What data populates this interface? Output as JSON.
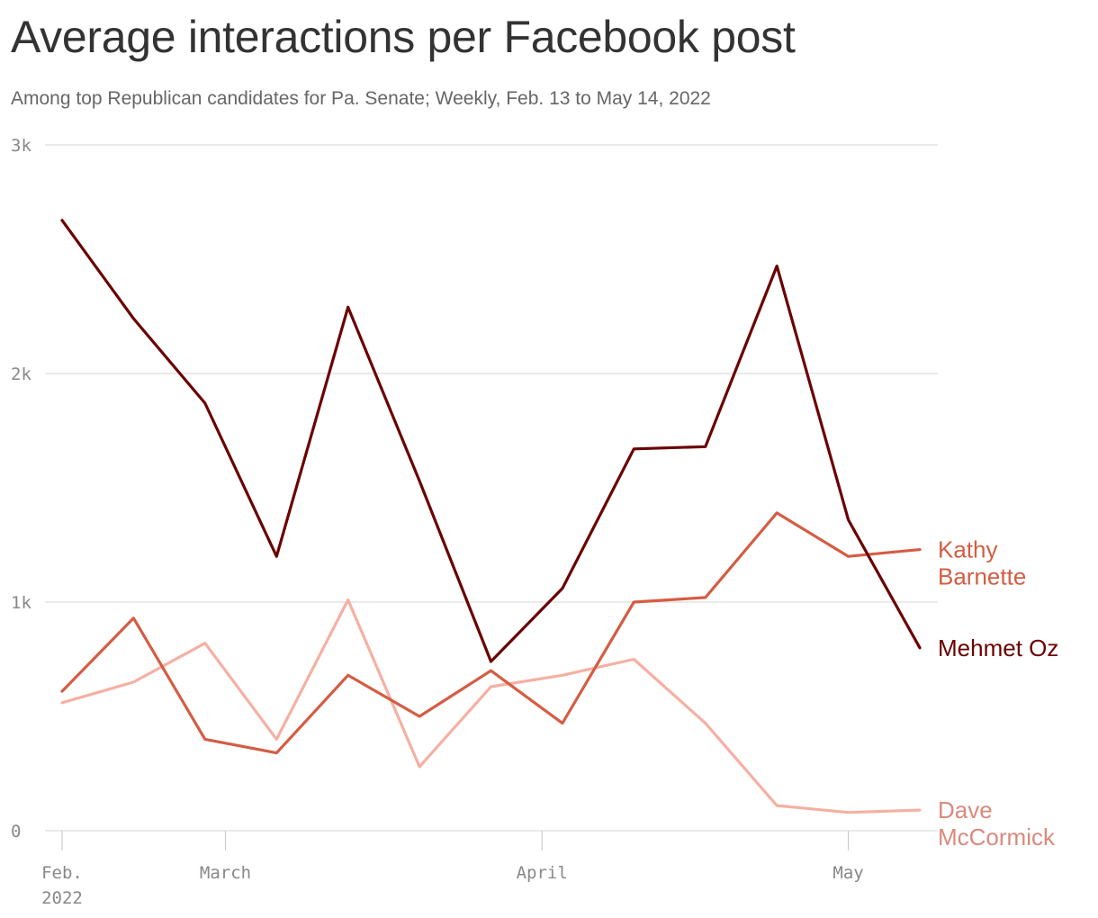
{
  "header": {
    "title": "Average interactions per Facebook post",
    "subtitle": "Among top Republican candidates for Pa. Senate; Weekly, Feb. 13 to May 14, 2022"
  },
  "chart_data": {
    "type": "line",
    "title": "Average interactions per Facebook post",
    "subtitle": "Among top Republican candidates for Pa. Senate; Weekly, Feb. 13 to May 14, 2022",
    "x": [
      "2022-02-13",
      "2022-02-20",
      "2022-02-27",
      "2022-03-06",
      "2022-03-13",
      "2022-03-20",
      "2022-03-27",
      "2022-04-03",
      "2022-04-10",
      "2022-04-17",
      "2022-04-24",
      "2022-05-01",
      "2022-05-08"
    ],
    "x_ticks": [
      {
        "date": "2022-02-13",
        "label": [
          "Feb.",
          "2022"
        ]
      },
      {
        "date": "2022-03-01",
        "label": [
          "March"
        ]
      },
      {
        "date": "2022-04-01",
        "label": [
          "April"
        ]
      },
      {
        "date": "2022-05-01",
        "label": [
          "May"
        ]
      }
    ],
    "y_ticks": [
      {
        "value": 0,
        "label": "0"
      },
      {
        "value": 1000,
        "label": "1k"
      },
      {
        "value": 2000,
        "label": "2k"
      },
      {
        "value": 3000,
        "label": "3k"
      }
    ],
    "ylim": [
      0,
      3000
    ],
    "grid": true,
    "legend": "inline labels at line ends",
    "series": [
      {
        "name": "Mehmet Oz",
        "label_lines": [
          "Mehmet Oz"
        ],
        "color": "#6b0000",
        "values": [
          2670,
          2240,
          1870,
          1200,
          2290,
          1530,
          740,
          1060,
          1670,
          1680,
          2470,
          1360,
          800
        ]
      },
      {
        "name": "Kathy Barnette",
        "label_lines": [
          "Kathy",
          "Barnette"
        ],
        "color": "#d45d43",
        "values": [
          610,
          930,
          400,
          340,
          680,
          500,
          700,
          470,
          1000,
          1020,
          1390,
          1200,
          1230
        ]
      },
      {
        "name": "Dave McCormick",
        "label_lines": [
          "Dave",
          "McCormick"
        ],
        "color": "#f5b0a3",
        "label_color": "#d98a7d",
        "values": [
          560,
          650,
          820,
          400,
          1010,
          280,
          630,
          680,
          750,
          470,
          110,
          80,
          90
        ]
      }
    ]
  }
}
